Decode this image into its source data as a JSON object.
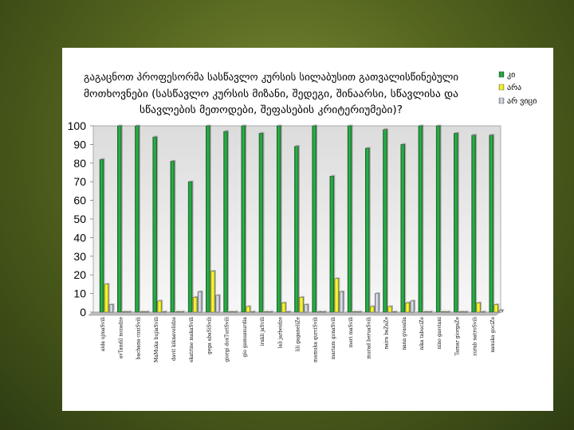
{
  "colors": {
    "series_ki": "#1f9d3a",
    "series_ara": "#f2f21a",
    "series_ar_vici": "#c7ccd8",
    "plot_background": "#f2f2f2",
    "frame": "#ffffff"
  },
  "chart_data": {
    "type": "bar",
    "title": "გაგაცნოთ პროფესორმა სასწავლო კურსის სილაბუსით გათვალისწინებული მოთხოვნები (სასწავლო კურსის მიზანი, შედეგი, შინაარსი, სწავლისა და სწავლების მეთოდები, შეფასების კრიტერიუმები)?",
    "title_lines": [
      "გაგაცნოთ პროფესორმა სასწავლო კურსის სილაბუსით გათვალისწინებული",
      "მოთხოვნები (სასწავლო კურსის მიზანი, შედეგი, შინაარსი, სწავლისა და",
      "სწავლების მეთოდები, შეფასების კრიტერიუმები)?"
    ],
    "xlabel": "",
    "ylabel": "",
    "ylim": [
      0,
      100
    ],
    "yticks": [
      0,
      10,
      20,
      30,
      40,
      50,
      60,
      70,
      80,
      90,
      100
    ],
    "grid": false,
    "legend_position": "right",
    "categories": [
      "aida ujmaSvili",
      "avTandil nozadze",
      "bachana cuxiSvili",
      "MaMuka bujiaSvili",
      "davit kiknavelidze",
      "ekatrine makaSvili",
      "gega abaSiSvili",
      "giorgi doxTuriSvili",
      "gio gamsaxurdia",
      "irakli jaSvili",
      "lali jarbeidze",
      "lili gaganeliZe",
      "mamuka qurciSvili",
      "mariam gonaSvili",
      "meri maSvili",
      "murad beruaSvili",
      "naira baZaZe",
      "nana gvasalia",
      "nika tabuciZe",
      "nino gasviani",
      "Tamar giorgaZe",
      "zurab natroSvili",
      "nanuka gociZe"
    ],
    "series": [
      {
        "name": "კი",
        "values": [
          82,
          100,
          100,
          94,
          81,
          70,
          100,
          97,
          100,
          96,
          100,
          89,
          100,
          73,
          100,
          88,
          98,
          90,
          100,
          100,
          96,
          95,
          95
        ]
      },
      {
        "name": "არა",
        "values": [
          15,
          0,
          0,
          6,
          0,
          8,
          22,
          0,
          3,
          0,
          5,
          8,
          0,
          18,
          0,
          3,
          3,
          5,
          0,
          0,
          0,
          5,
          4
        ]
      },
      {
        "name": "არ ვიცი",
        "values": [
          4,
          0,
          0,
          0,
          0,
          11,
          9,
          0,
          0,
          0,
          0,
          4,
          0,
          11,
          0,
          10,
          0,
          6,
          0,
          0,
          0,
          0,
          1
        ]
      }
    ]
  }
}
